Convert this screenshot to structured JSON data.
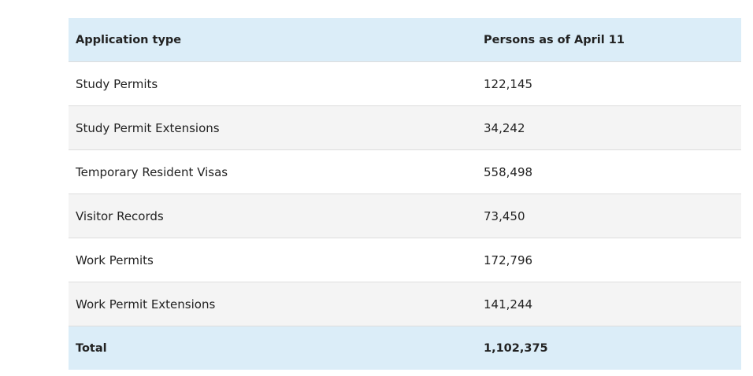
{
  "table": {
    "headers": [
      "Application type",
      "Persons as of April 11"
    ],
    "rows": [
      [
        "Study Permits",
        "122,145"
      ],
      [
        "Study Permit Extensions",
        "34,242"
      ],
      [
        "Temporary Resident Visas",
        "558,498"
      ],
      [
        "Visitor Records",
        "73,450"
      ],
      [
        "Work Permits",
        "172,796"
      ],
      [
        "Work Permit Extensions",
        "141,244"
      ]
    ],
    "total": [
      "Total",
      "1,102,375"
    ]
  },
  "colors": {
    "header_background": "#dbedf8",
    "alt_row_background": "#f4f4f4",
    "text": "#222222"
  }
}
